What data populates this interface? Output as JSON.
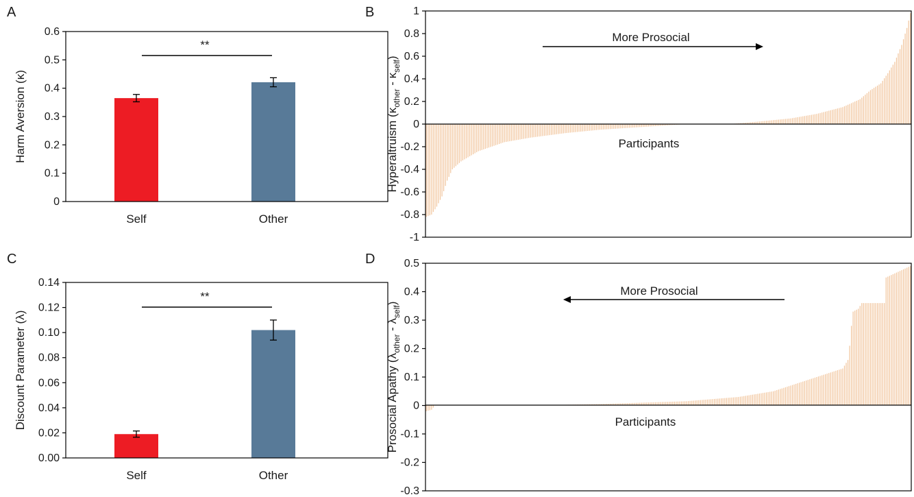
{
  "colors": {
    "self": "#ed1c24",
    "other": "#587a98",
    "participants": "#f2c7a0",
    "axis": "#000000"
  },
  "chart_data": [
    {
      "panel": "A",
      "type": "bar",
      "categories": [
        "Self",
        "Other"
      ],
      "values": [
        0.365,
        0.421
      ],
      "errors": [
        0.013,
        0.016
      ],
      "ylabel": "Harm Aversion (κ)",
      "ylim": [
        0,
        0.6
      ],
      "yticks": [
        "0",
        "0.1",
        "0.2",
        "0.3",
        "0.4",
        "0.5",
        "0.6"
      ],
      "significance": "**"
    },
    {
      "panel": "B",
      "type": "bar",
      "xlabel": "Participants",
      "ylabel": {
        "main": "Hyperaltruism (κ",
        "sub1": "other",
        "mid": " - κ",
        "sub2": "self",
        "end": ")"
      },
      "ylim": [
        -1,
        1
      ],
      "yticks": [
        "-1",
        "-0.8",
        "-0.6",
        "-0.4",
        "-0.2",
        "0",
        "0.2",
        "0.4",
        "0.6",
        "0.8",
        "1"
      ],
      "annotation": {
        "text": "More Prosocial",
        "arrow": "right"
      },
      "sorted_values": {
        "n": 280,
        "knots": [
          [
            0,
            -0.82
          ],
          [
            3,
            -0.8
          ],
          [
            6,
            -0.73
          ],
          [
            9,
            -0.64
          ],
          [
            12,
            -0.5
          ],
          [
            15,
            -0.4
          ],
          [
            20,
            -0.33
          ],
          [
            30,
            -0.24
          ],
          [
            45,
            -0.16
          ],
          [
            60,
            -0.12
          ],
          [
            80,
            -0.08
          ],
          [
            100,
            -0.05
          ],
          [
            120,
            -0.03
          ],
          [
            140,
            -0.01
          ],
          [
            150,
            0.0
          ],
          [
            160,
            0.0
          ],
          [
            175,
            0.0
          ],
          [
            190,
            0.02
          ],
          [
            210,
            0.05
          ],
          [
            225,
            0.09
          ],
          [
            240,
            0.15
          ],
          [
            250,
            0.22
          ],
          [
            256,
            0.3
          ],
          [
            262,
            0.36
          ],
          [
            266,
            0.45
          ],
          [
            270,
            0.55
          ],
          [
            274,
            0.7
          ],
          [
            277,
            0.85
          ],
          [
            279,
            0.98
          ]
        ]
      }
    },
    {
      "panel": "C",
      "type": "bar",
      "categories": [
        "Self",
        "Other"
      ],
      "values": [
        0.019,
        0.102
      ],
      "errors": [
        0.0025,
        0.008
      ],
      "ylabel": "Discount Parameter (λ)",
      "ylim": [
        0,
        0.14
      ],
      "yticks": [
        "0.00",
        "0.02",
        "0.04",
        "0.06",
        "0.08",
        "0.10",
        "0.12",
        "0.14"
      ],
      "significance": "**"
    },
    {
      "panel": "D",
      "type": "bar",
      "xlabel": "Participants",
      "ylabel": {
        "main": "Prosocial Apathy (λ",
        "sub1": "other",
        "mid": " - λ",
        "sub2": "self",
        "end": ")"
      },
      "ylim": [
        -0.3,
        0.5
      ],
      "yticks": [
        "-0.3",
        "-0.2",
        "-0.1",
        "0",
        "0.1",
        "0.2",
        "0.3",
        "0.4",
        "0.5"
      ],
      "annotation": {
        "text": "More Prosocial",
        "arrow": "left"
      },
      "sorted_values": {
        "n": 280,
        "knots": [
          [
            0,
            -0.02
          ],
          [
            3,
            -0.015
          ],
          [
            5,
            0.0
          ],
          [
            60,
            0.0
          ],
          [
            100,
            0.005
          ],
          [
            150,
            0.015
          ],
          [
            180,
            0.03
          ],
          [
            200,
            0.05
          ],
          [
            215,
            0.08
          ],
          [
            225,
            0.1
          ],
          [
            235,
            0.12
          ],
          [
            240,
            0.13
          ],
          [
            243,
            0.16
          ],
          [
            244,
            0.21
          ],
          [
            245,
            0.28
          ],
          [
            246,
            0.33
          ],
          [
            249,
            0.34
          ],
          [
            250,
            0.35
          ],
          [
            251,
            0.36
          ],
          [
            264,
            0.36
          ],
          [
            265,
            0.45
          ],
          [
            272,
            0.47
          ],
          [
            279,
            0.49
          ]
        ]
      }
    }
  ]
}
